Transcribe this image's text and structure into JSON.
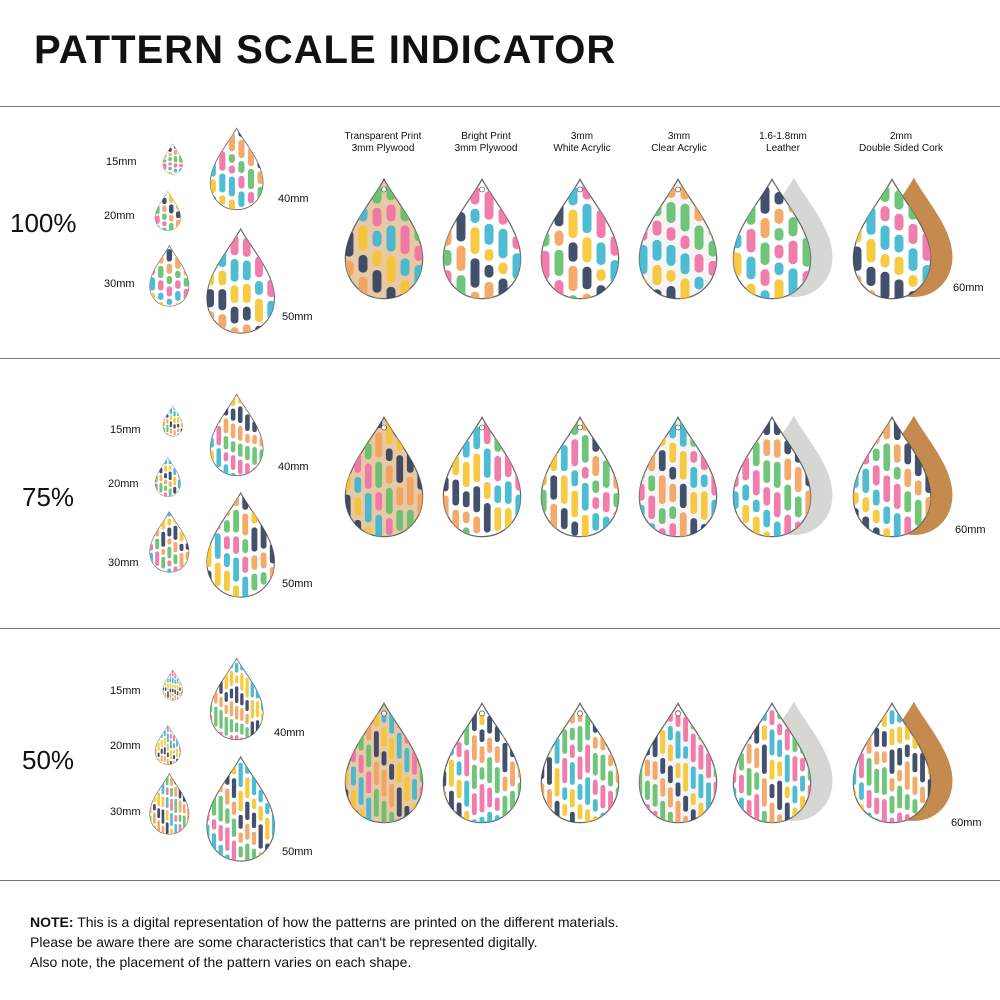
{
  "title": "PATTERN SCALE INDICATOR",
  "columns": [
    {
      "line1": "Transparent Print",
      "line2": "3mm Plywood"
    },
    {
      "line1": "Bright Print",
      "line2": "3mm Plywood"
    },
    {
      "line1": "3mm",
      "line2": "White Acrylic"
    },
    {
      "line1": "3mm",
      "line2": "Clear Acrylic"
    },
    {
      "line1": "1.6-1.8mm",
      "line2": "Leather"
    },
    {
      "line1": "2mm",
      "line2": "Double Sided Cork"
    }
  ],
  "size_labels": {
    "s15": "15mm",
    "s20": "20mm",
    "s30": "30mm",
    "s40": "40mm",
    "s50": "50mm",
    "s60": "60mm"
  },
  "sections": [
    {
      "scale": "100%"
    },
    {
      "scale": "75%"
    },
    {
      "scale": "50%"
    }
  ],
  "note": {
    "label": "NOTE:",
    "line1": " This is a digital representation of how the patterns are printed on the different materials.",
    "line2": "Please be aware there are some characteristics that can't be represented digitally.",
    "line3": "Also note, the placement of the pattern varies on each shape."
  },
  "colors": {
    "pink": "#f06fa4",
    "teal": "#3bb6cf",
    "yellow": "#f5c42c",
    "navy": "#2f3e5c",
    "orange": "#f2a15a",
    "green": "#5fbf6a",
    "wood": "#e8c9a6",
    "cork": "#c58a4e",
    "suede": "#d6d6d2"
  }
}
